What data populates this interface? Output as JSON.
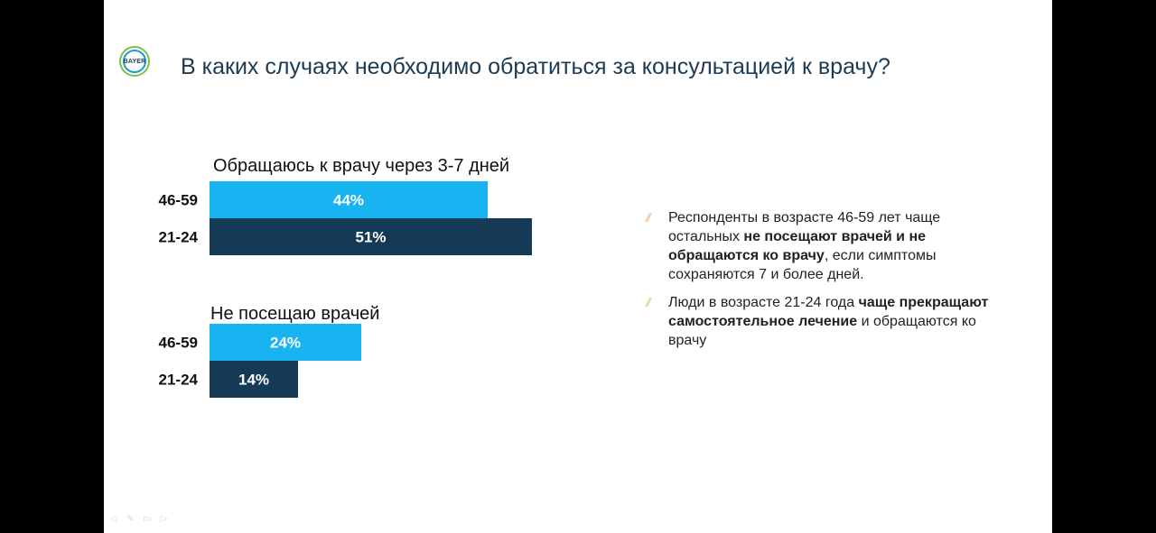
{
  "logo_text": "BAYER",
  "title": "В каких случаях необходимо обратиться за консультацией к врачу?",
  "colors": {
    "light_blue": "#18b4f2",
    "dark_blue": "#153a56",
    "title": "#1d3b54"
  },
  "chart_data": [
    {
      "type": "bar",
      "orientation": "horizontal",
      "title": "Обращаюсь к врачу через 3-7 дней",
      "categories": [
        "46-59",
        "21-24"
      ],
      "values": [
        44,
        51
      ],
      "labels": [
        "44%",
        "51%"
      ],
      "unit": "%"
    },
    {
      "type": "bar",
      "orientation": "horizontal",
      "title": "Не посещаю врачей",
      "categories": [
        "46-59",
        "21-24"
      ],
      "values": [
        24,
        14
      ],
      "labels": [
        "24%",
        "14%"
      ],
      "unit": "%"
    }
  ],
  "notes": [
    {
      "parts": [
        {
          "text": "Респонденты в возрасте 46-59 лет чаще остальных ",
          "bold": false
        },
        {
          "text": "не посещают врачей и не обращаются ко врачу",
          "bold": true
        },
        {
          "text": ", если симптомы сохраняются 7 и более дней.",
          "bold": false
        }
      ]
    },
    {
      "parts": [
        {
          "text": "Люди в возрасте 21-24 года ",
          "bold": false
        },
        {
          "text": "чаще прекращают самостоятельное лечение",
          "bold": true
        },
        {
          "text": " и обращаются ко врачу",
          "bold": false
        }
      ]
    }
  ],
  "note_marker": "//",
  "viewer_controls": [
    "prev-icon",
    "pointer-icon",
    "slides-icon",
    "next-icon"
  ]
}
